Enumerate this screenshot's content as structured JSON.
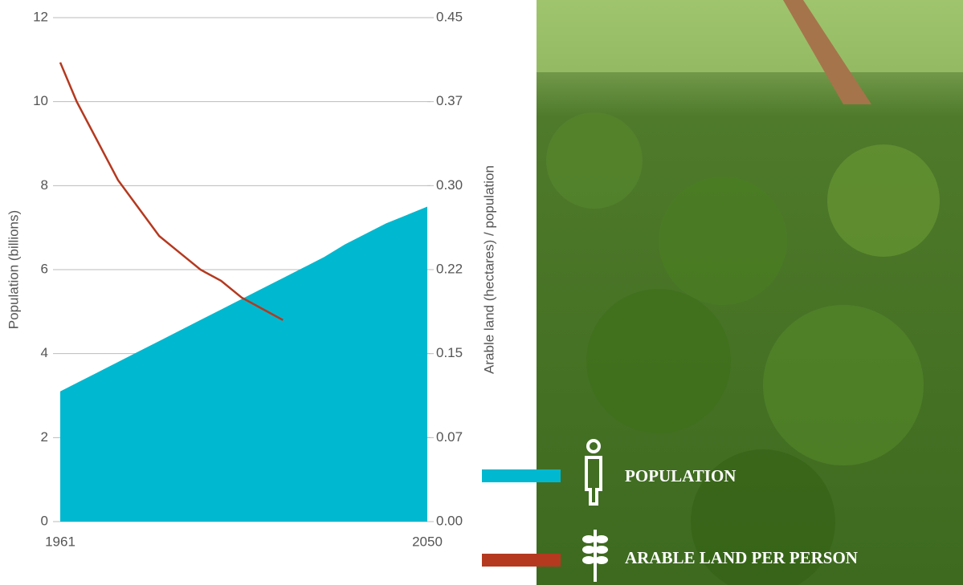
{
  "chart_data": {
    "type": "area-line",
    "x": [
      1961,
      1965,
      1970,
      1975,
      1980,
      1985,
      1990,
      1995,
      2000,
      2005,
      2010,
      2015,
      2020,
      2025,
      2030,
      2035,
      2040,
      2045,
      2050
    ],
    "series": [
      {
        "name": "POPULATION",
        "color": "#00b8cf",
        "axis": "y",
        "values": [
          3.1,
          3.3,
          3.55,
          3.8,
          4.05,
          4.3,
          4.55,
          4.8,
          5.05,
          5.3,
          5.55,
          5.8,
          6.05,
          6.3,
          6.6,
          6.85,
          7.1,
          7.3,
          7.5
        ]
      },
      {
        "name": "ARABLE LAND PER PERSON",
        "color": "#b5391f",
        "axis": "y2",
        "values": [
          0.41,
          0.375,
          0.34,
          0.305,
          0.28,
          0.255,
          0.24,
          0.225,
          0.215,
          0.2,
          0.19,
          0.18,
          null,
          null,
          null,
          null,
          null,
          null,
          null
        ]
      }
    ],
    "ylabel": "Population (billions)",
    "y2label": "Arable land (hectares) / population",
    "xlim": [
      1961,
      2050
    ],
    "xticks": [
      1961,
      2050
    ],
    "ylim": [
      0,
      12
    ],
    "yticks": [
      0,
      2,
      4,
      6,
      8,
      10,
      12
    ],
    "y2lim": [
      0,
      0.45
    ],
    "y2ticks": [
      {
        "value": 0,
        "label": "0.00"
      },
      {
        "value": 0.075,
        "label": "0.07"
      },
      {
        "value": 0.15,
        "label": "0.15"
      },
      {
        "value": 0.225,
        "label": "0.22"
      },
      {
        "value": 0.3,
        "label": "0.30"
      },
      {
        "value": 0.375,
        "label": "0.37"
      },
      {
        "value": 0.45,
        "label": "0.45"
      }
    ],
    "grid": true
  }
}
